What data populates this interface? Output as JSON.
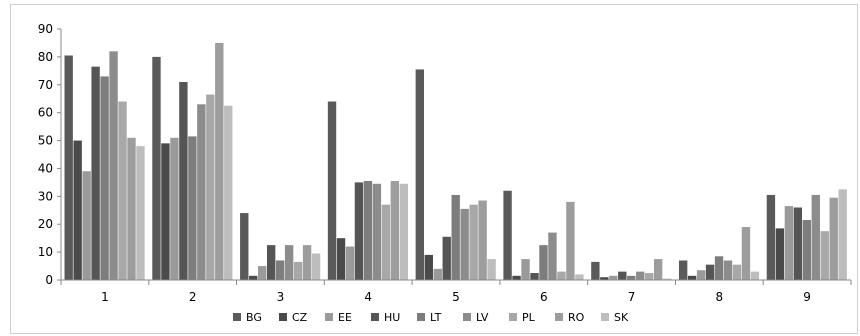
{
  "chart_data": {
    "type": "bar",
    "title": "",
    "xlabel": "",
    "ylabel": "",
    "ylim": [
      0,
      90
    ],
    "yticks": [
      0,
      10,
      20,
      30,
      40,
      50,
      60,
      70,
      80,
      90
    ],
    "grid": false,
    "legend_position": "bottom",
    "categories": [
      "1",
      "2",
      "3",
      "4",
      "5",
      "6",
      "7",
      "8",
      "9"
    ],
    "series": [
      {
        "name": "BG",
        "color": "#5a5a5a",
        "values": [
          80.5,
          80,
          24,
          64,
          75.5,
          32,
          6.5,
          7,
          30.5
        ]
      },
      {
        "name": "CZ",
        "color": "#4a4a4a",
        "values": [
          50,
          49,
          1.5,
          15,
          9,
          1.5,
          1,
          1.5,
          18.5
        ]
      },
      {
        "name": "EE",
        "color": "#9a9a9a",
        "values": [
          39,
          51,
          5,
          12,
          4,
          7.5,
          1.5,
          3.5,
          26.5
        ]
      },
      {
        "name": "HU",
        "color": "#555555",
        "values": [
          76.5,
          71,
          12.5,
          35,
          15.5,
          2.5,
          3,
          5.5,
          26
        ]
      },
      {
        "name": "LT",
        "color": "#7d7d7d",
        "values": [
          73,
          51.5,
          7,
          35.5,
          30.5,
          12.5,
          1.5,
          8.5,
          21.5
        ]
      },
      {
        "name": "LV",
        "color": "#8c8c8c",
        "values": [
          82,
          63,
          12.5,
          34.5,
          25.5,
          17,
          3,
          7,
          30.5
        ]
      },
      {
        "name": "PL",
        "color": "#a8a8a8",
        "values": [
          64,
          66.5,
          6.5,
          27,
          27,
          3,
          2.5,
          5.5,
          17.5
        ]
      },
      {
        "name": "RO",
        "color": "#9d9d9d",
        "values": [
          51,
          85,
          12.5,
          35.5,
          28.5,
          28,
          7.5,
          19,
          29.5
        ]
      },
      {
        "name": "SK",
        "color": "#bdbdbd",
        "values": [
          48,
          62.5,
          9.5,
          34.5,
          7.5,
          2,
          0.5,
          3,
          32.5
        ]
      }
    ]
  }
}
